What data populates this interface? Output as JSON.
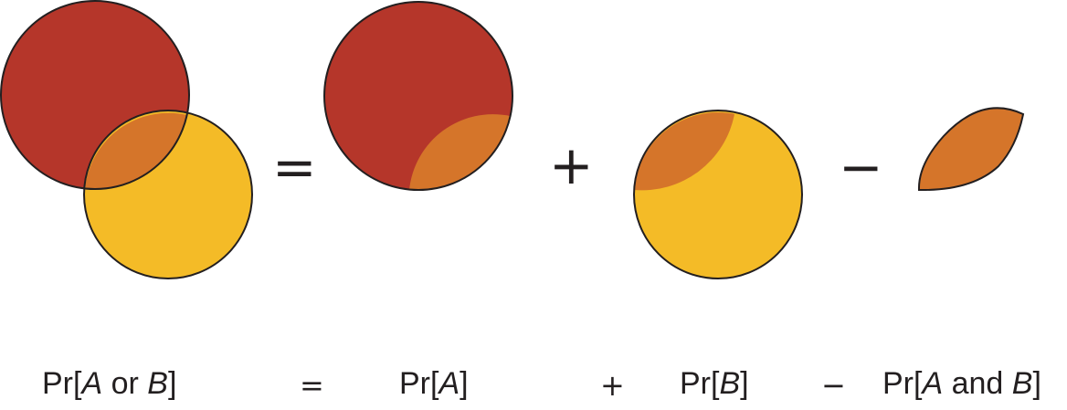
{
  "colors": {
    "set_a": "#b5362a",
    "set_b": "#f4bb27",
    "intersection": "#d5752a",
    "outline": "#231f20"
  },
  "formula": {
    "union": {
      "prefix": "Pr[",
      "var1": "A",
      "mid": " or ",
      "var2": "B",
      "suffix": "]"
    },
    "equals": "=",
    "pr_a": {
      "prefix": "Pr[",
      "var1": "A",
      "suffix": "]"
    },
    "plus": "+",
    "pr_b": {
      "prefix": "Pr[",
      "var1": "B",
      "suffix": "]"
    },
    "minus": "−",
    "pr_ab": {
      "prefix": "Pr[",
      "var1": "A",
      "mid": " and ",
      "var2": "B",
      "suffix": "]"
    }
  }
}
